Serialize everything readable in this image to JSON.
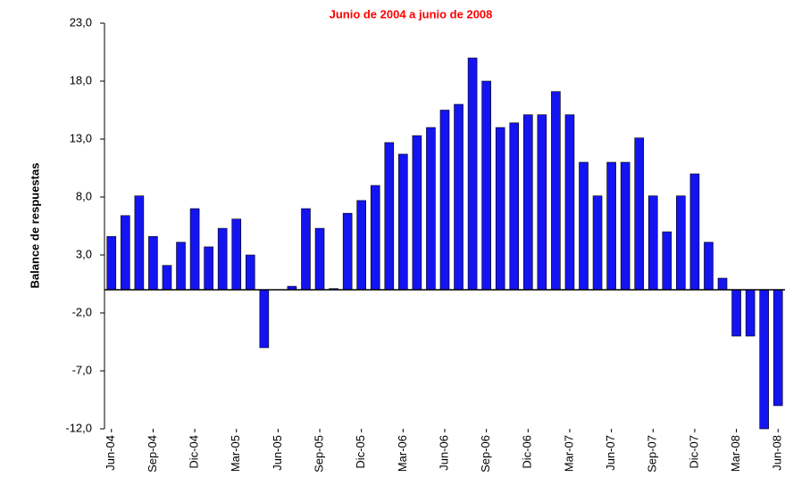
{
  "chart_data": {
    "type": "bar",
    "title": "Junio de 2004 a junio de 2008",
    "y_label": "Balance de respuestas",
    "color": "#1414f0",
    "categories": [
      "Jun-04",
      null,
      null,
      "Sep-04",
      null,
      null,
      "Dic-04",
      null,
      null,
      "Mar-05",
      null,
      null,
      "Jun-05",
      null,
      null,
      "Sep-05",
      null,
      null,
      "Dic-05",
      null,
      null,
      "Mar-06",
      null,
      null,
      "Jun-06",
      null,
      null,
      "Sep-06",
      null,
      null,
      "Dic-06",
      null,
      null,
      "Mar-07",
      null,
      null,
      "Jun-07",
      null,
      null,
      "Sep-07",
      null,
      null,
      "Dic-07",
      null,
      null,
      "Mar-08",
      null,
      null,
      "Jun-08"
    ],
    "values": [
      4.6,
      6.4,
      8.1,
      4.6,
      2.1,
      4.1,
      7.0,
      3.7,
      5.3,
      6.1,
      3.0,
      -5.0,
      0,
      0.3,
      7.0,
      5.3,
      0.1,
      6.6,
      7.7,
      9.0,
      12.7,
      11.7,
      13.3,
      14.0,
      15.5,
      16.0,
      20.0,
      18.0,
      14.0,
      14.4,
      15.1,
      15.1,
      17.1,
      15.1,
      11.0,
      8.1,
      11.0,
      11.0,
      13.1,
      8.1,
      5.0,
      8.1,
      10.0,
      4.1,
      1.0,
      -4.0,
      -4.0,
      -12.0,
      -10.0
    ],
    "ylim": [
      -12,
      23
    ],
    "yticks": [
      {
        "value": -12,
        "label": "-12,0"
      },
      {
        "value": -7,
        "label": "-7,0"
      },
      {
        "value": -2,
        "label": "-2,0"
      },
      {
        "value": 3,
        "label": "3,0"
      },
      {
        "value": 8,
        "label": "8,0"
      },
      {
        "value": 13,
        "label": "13,0"
      },
      {
        "value": 18,
        "label": "18,0"
      },
      {
        "value": 23,
        "label": "23,0"
      }
    ]
  }
}
